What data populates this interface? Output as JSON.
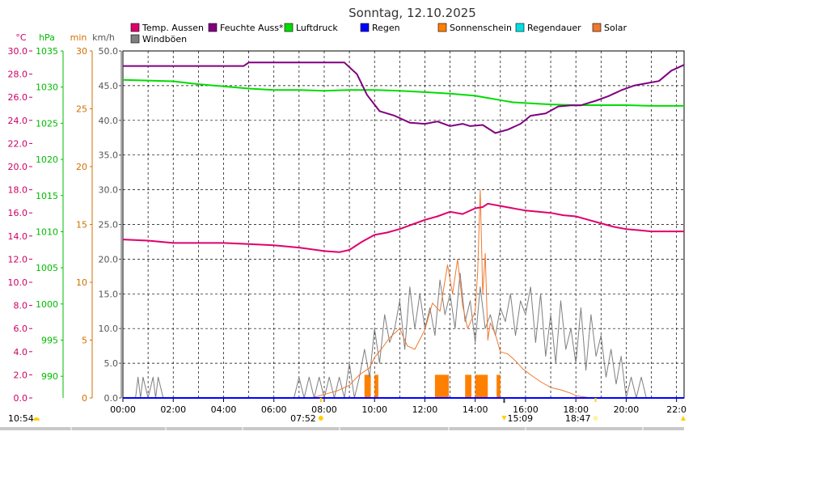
{
  "chart_data": {
    "type": "line",
    "title": "Sonntag, 12.10.2025",
    "legend": [
      {
        "label": "Temp. Aussen",
        "color": "#e0006c"
      },
      {
        "label": "Feuchte Auss*",
        "color": "#800080"
      },
      {
        "label": "Luftdruck",
        "color": "#00dd00"
      },
      {
        "label": "Regen",
        "color": "#0000ff"
      },
      {
        "label": "Sonnenschein",
        "color": "#ff8000"
      },
      {
        "label": "Regendauer",
        "color": "#00e0e0"
      },
      {
        "label": "Solar",
        "color": "#f07830"
      },
      {
        "label": "Windböen",
        "color": "#7f7f7f"
      }
    ],
    "axes": [
      {
        "unit": "°C",
        "color": "#cc0066",
        "min": 0,
        "max": 30,
        "ticks": [
          "0.0",
          "2.0",
          "4.0",
          "6.0",
          "8.0",
          "10.0",
          "12.0",
          "14.0",
          "16.0",
          "18.0",
          "20.0",
          "22.0",
          "24.0",
          "26.0",
          "28.0",
          "30.0"
        ]
      },
      {
        "unit": "hPa",
        "color": "#00bb00",
        "min": 987,
        "max": 1035,
        "ticks": [
          "990",
          "995",
          "1000",
          "1005",
          "1010",
          "1015",
          "1020",
          "1025",
          "1030",
          "1035"
        ]
      },
      {
        "unit": "min",
        "color": "#d07000",
        "min": 0,
        "max": 30,
        "ticks": [
          "0",
          "5",
          "10",
          "15",
          "20",
          "25",
          "30"
        ]
      },
      {
        "unit": "km/h",
        "color": "#555555",
        "min": 0,
        "max": 50,
        "ticks": [
          "0.0",
          "5.0",
          "10.0",
          "15.0",
          "20.0",
          "25.0",
          "30.0",
          "35.0",
          "40.0",
          "45.0",
          "50.0"
        ]
      }
    ],
    "x_labels": [
      "00:00",
      "02:00",
      "04:00",
      "06:00",
      "08:00",
      "10:00",
      "12:00",
      "14:00",
      "16:00",
      "18:00",
      "20:00",
      "22:0"
    ],
    "x_range_hours": [
      0,
      22.3
    ],
    "sun_events": {
      "sunrise": "07:52",
      "sunset": "18:47",
      "moonrise": "10:54",
      "moon_event": "15:09"
    },
    "series": [
      {
        "name": "Temp. Aussen",
        "axis": "°C",
        "x": [
          0,
          1,
          2,
          3,
          4,
          5,
          6,
          7,
          8,
          8.6,
          9,
          9.5,
          10,
          10.5,
          11,
          11.5,
          12,
          12.5,
          13,
          13.5,
          14,
          14.3,
          14.5,
          15,
          15.5,
          16,
          16.5,
          17,
          17.5,
          18,
          18.5,
          19,
          19.5,
          20,
          20.5,
          21,
          21.5,
          22,
          22.3
        ],
        "y": [
          13.7,
          13.6,
          13.4,
          13.4,
          13.4,
          13.3,
          13.2,
          13.0,
          12.7,
          12.6,
          12.8,
          13.5,
          14.1,
          14.3,
          14.6,
          15.0,
          15.4,
          15.7,
          16.1,
          15.9,
          16.4,
          16.5,
          16.8,
          16.6,
          16.4,
          16.2,
          16.1,
          16.0,
          15.8,
          15.7,
          15.4,
          15.1,
          14.8,
          14.6,
          14.5,
          14.4,
          14.4,
          14.4,
          14.4
        ]
      },
      {
        "name": "Feuchte Auss*",
        "axis": "°C",
        "x": [
          0,
          2,
          3.5,
          4.8,
          5,
          6,
          7,
          8,
          8.8,
          9.3,
          9.7,
          10.2,
          10.8,
          11.4,
          12,
          12.5,
          13,
          13.5,
          13.8,
          14.3,
          14.8,
          15.3,
          15.8,
          16.2,
          16.8,
          17.3,
          17.8,
          18.2,
          18.8,
          19.3,
          19.8,
          20.3,
          20.8,
          21.3,
          21.8,
          22.3
        ],
        "y": [
          28.7,
          28.7,
          28.7,
          28.7,
          29.0,
          29.0,
          29.0,
          29.0,
          29.0,
          28.0,
          26.2,
          24.8,
          24.4,
          23.8,
          23.7,
          23.9,
          23.5,
          23.7,
          23.5,
          23.6,
          22.9,
          23.2,
          23.7,
          24.4,
          24.6,
          25.2,
          25.3,
          25.3,
          25.7,
          26.1,
          26.6,
          27.0,
          27.2,
          27.4,
          28.3,
          28.8
        ]
      },
      {
        "name": "Luftdruck",
        "axis": "hPa",
        "x": [
          0,
          1,
          2,
          3,
          4,
          5,
          6,
          7,
          8,
          9,
          10,
          11,
          12,
          13,
          14,
          14.5,
          15,
          15.5,
          16,
          17,
          18,
          19,
          20,
          21,
          22,
          22.3
        ],
        "y": [
          1031.0,
          1030.9,
          1030.8,
          1030.4,
          1030.1,
          1029.8,
          1029.6,
          1029.6,
          1029.5,
          1029.6,
          1029.6,
          1029.5,
          1029.3,
          1029.1,
          1028.8,
          1028.5,
          1028.2,
          1027.9,
          1027.8,
          1027.6,
          1027.5,
          1027.5,
          1027.5,
          1027.4,
          1027.4,
          1027.4
        ]
      },
      {
        "name": "Regen",
        "axis": "min",
        "x": [
          0,
          22.3
        ],
        "y": [
          0,
          0
        ]
      },
      {
        "name": "Regendauer",
        "axis": "min",
        "x": [
          0,
          22.3
        ],
        "y": [
          0,
          0
        ]
      },
      {
        "name": "Solar",
        "axis": "min",
        "x": [
          0,
          7.5,
          8,
          8.5,
          9,
          9.4,
          9.8,
          10,
          10.3,
          10.6,
          11,
          11.3,
          11.6,
          12,
          12.3,
          12.6,
          12.9,
          13.1,
          13.3,
          13.5,
          13.7,
          14,
          14.1,
          14.2,
          14.3,
          14.4,
          14.5,
          14.6,
          14.8,
          15,
          15.3,
          15.6,
          15.9,
          16.2,
          16.6,
          17,
          17.4,
          17.8,
          18,
          18.3,
          18.6,
          18.8,
          19,
          22.3
        ],
        "y": [
          0,
          0,
          0.3,
          0.6,
          1.1,
          2.0,
          2.6,
          3.5,
          4.3,
          5.2,
          6.0,
          4.5,
          4.2,
          5.9,
          8.2,
          7.5,
          11.5,
          9.0,
          12.0,
          8.0,
          6.0,
          7.5,
          11.0,
          18.0,
          9.0,
          12.5,
          5.0,
          6.5,
          5.5,
          4.0,
          3.8,
          3.2,
          2.5,
          2.0,
          1.4,
          0.9,
          0.7,
          0.4,
          0.2,
          0.1,
          0,
          0,
          0,
          0
        ]
      },
      {
        "name": "Windböen",
        "axis": "km/h",
        "x": [
          0,
          0.5,
          0.6,
          0.7,
          0.8,
          1.0,
          1.2,
          1.3,
          1.4,
          1.6,
          6.8,
          7.0,
          7.2,
          7.4,
          7.6,
          7.8,
          8.0,
          8.2,
          8.4,
          8.6,
          8.8,
          9.0,
          9.2,
          9.4,
          9.6,
          9.8,
          10.0,
          10.2,
          10.4,
          10.6,
          10.8,
          11.0,
          11.2,
          11.4,
          11.6,
          11.8,
          12.0,
          12.2,
          12.4,
          12.6,
          12.8,
          13.0,
          13.2,
          13.4,
          13.6,
          13.8,
          14.0,
          14.2,
          14.4,
          14.6,
          14.8,
          15.0,
          15.2,
          15.4,
          15.6,
          15.8,
          16.0,
          16.2,
          16.4,
          16.6,
          16.8,
          17.0,
          17.2,
          17.4,
          17.6,
          17.8,
          18.0,
          18.2,
          18.4,
          18.6,
          18.8,
          19.0,
          19.2,
          19.4,
          19.6,
          19.8,
          20.0,
          20.2,
          20.4,
          20.6,
          20.8,
          21.0,
          22.3
        ],
        "y": [
          0,
          0,
          3,
          0,
          3,
          0,
          3,
          0,
          3,
          0,
          0,
          3,
          0,
          3,
          0,
          3,
          0,
          3,
          0,
          3,
          0,
          5,
          0,
          3,
          7,
          3,
          10,
          5,
          12,
          8,
          10,
          14,
          7,
          16,
          10,
          15,
          10,
          13,
          9,
          17,
          12,
          15,
          10,
          18,
          11,
          14,
          8,
          16,
          10,
          12,
          9,
          13,
          11,
          15,
          9,
          14,
          12,
          16,
          8,
          15,
          6,
          12,
          5,
          14,
          7,
          10,
          5,
          13,
          4,
          12,
          6,
          9,
          3,
          7,
          2,
          6,
          0,
          3,
          0,
          3,
          0,
          0,
          0
        ]
      }
    ],
    "sunshine_blocks_min": [
      {
        "from": 9.6,
        "to": 9.85,
        "value": 2.0
      },
      {
        "from": 10.0,
        "to": 10.15,
        "value": 2.0
      },
      {
        "from": 12.4,
        "to": 12.95,
        "value": 2.0
      },
      {
        "from": 13.6,
        "to": 13.85,
        "value": 2.0
      },
      {
        "from": 14.0,
        "to": 14.5,
        "value": 2.0
      },
      {
        "from": 14.85,
        "to": 15.0,
        "value": 2.0
      }
    ]
  }
}
